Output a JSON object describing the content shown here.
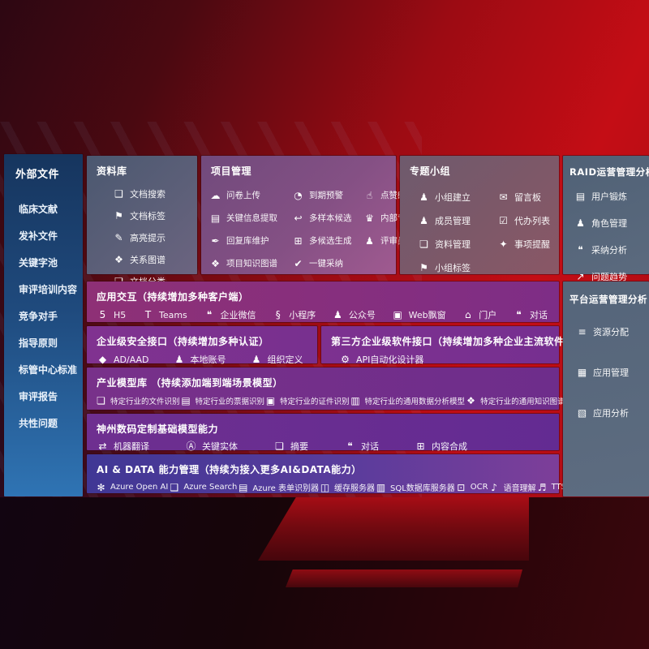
{
  "colors": {
    "background_red": "#c40d15",
    "background_maroon": "#4a0911",
    "sidebar_blue_top": "#16355e",
    "sidebar_blue_bottom": "#2f74b4",
    "panel_gray_blue": "#5c5f78",
    "panel_purple": "#845084",
    "panel_mauve": "#7d5868",
    "panel_slate": "#5b6a7e",
    "row_magenta": "#862f7e",
    "row_purple": "#78308f",
    "row_indigo": "#5a3c9c"
  },
  "icon_glyphs": {
    "doc-search": "❑",
    "doc-tag": "⚑",
    "highlighter": "✎",
    "relation-graph": "❖",
    "doc-classify": "❏",
    "cloud-upload": "☁",
    "alarm": "◔",
    "thumbs-up": "☝",
    "key-info-extract": "▤",
    "reply-library": "✒",
    "multi-sample": "↩",
    "multi-candidate": "⊞",
    "expert-rank": "♛",
    "person-portrait": "♟",
    "knowledge-graph": "❖",
    "adopt-check": "✔",
    "group-create": "♟",
    "message-board": "✉",
    "member-manage": "♟",
    "todo-list": "☑",
    "material-manage": "❏",
    "bell-remind": "✦",
    "group-tag": "⚑",
    "id-card": "▤",
    "role-people": "♟",
    "chat-analysis": "❝",
    "trend-chart": "↗",
    "html5": "5",
    "teams": "T",
    "wechat-work": "❝",
    "mini-program": "§",
    "official-account": "♟",
    "web-window": "▣",
    "portal-person": "⌂",
    "dialog-chat": "❝",
    "shield": "◆",
    "local-account": "♟",
    "org-people": "♟",
    "api-gear": "⚙",
    "file-recognize": "❏",
    "invoice-recognize": "▤",
    "cert-recognize": "▣",
    "data-analysis-model": "▥",
    "knowledge-graph-model": "❖",
    "translate": "⇄",
    "key-entity": "Ⓐ",
    "summary-doc": "❏",
    "chat-bubble": "❝",
    "content-compose": "⊞",
    "openai": "✻",
    "azure-search": "❑",
    "form-recognizer": "▤",
    "cache-server": "◫",
    "sql-database": "▥",
    "ocr-frame": "⊡",
    "voice-understand": "♪",
    "tts": "♬",
    "resource-list": "≡",
    "app-grid": "▦",
    "app-analysis": "▧"
  },
  "sidebar": {
    "title": "外部文件",
    "items": [
      {
        "label": "临床文献"
      },
      {
        "label": "发补文件"
      },
      {
        "label": "关键字池"
      },
      {
        "label": "审评培训内容"
      },
      {
        "label": "竞争对手"
      },
      {
        "label": "指导原则"
      },
      {
        "label": "标管中心标准"
      },
      {
        "label": "审评报告"
      },
      {
        "label": "共性问题"
      }
    ]
  },
  "panels": {
    "ziliaoku": {
      "title": "资料库",
      "items": [
        {
          "icon": "doc-search",
          "label": "文档搜索"
        },
        {
          "icon": "doc-tag",
          "label": "文档标签"
        },
        {
          "icon": "highlighter",
          "label": "高亮提示"
        },
        {
          "icon": "relation-graph",
          "label": "关系图谱"
        },
        {
          "icon": "doc-classify",
          "label": "文档分类"
        }
      ]
    },
    "xiangmu": {
      "title": "项目管理",
      "items": [
        {
          "icon": "cloud-upload",
          "label": "问卷上传"
        },
        {
          "icon": "alarm",
          "label": "到期预警"
        },
        {
          "icon": "thumbs-up",
          "label": "点赞感谢"
        },
        {
          "icon": "key-info-extract",
          "label": "关键信息提取"
        },
        {
          "icon": "multi-sample",
          "label": "多样本候选"
        },
        {
          "icon": "expert-rank",
          "label": "内部专家排名"
        },
        {
          "icon": "reply-library",
          "label": "回复库维护"
        },
        {
          "icon": "multi-candidate",
          "label": "多候选生成"
        },
        {
          "icon": "person-portrait",
          "label": "评审员画像"
        },
        {
          "icon": "knowledge-graph",
          "label": "项目知识图谱"
        },
        {
          "icon": "adopt-check",
          "label": "一键采纳"
        }
      ]
    },
    "zhuanti": {
      "title": "专题小组",
      "items": [
        {
          "icon": "group-create",
          "label": "小组建立"
        },
        {
          "icon": "message-board",
          "label": "留言板"
        },
        {
          "icon": "member-manage",
          "label": "成员管理"
        },
        {
          "icon": "todo-list",
          "label": "代办列表"
        },
        {
          "icon": "material-manage",
          "label": "资料管理"
        },
        {
          "icon": "bell-remind",
          "label": "事项提醒"
        },
        {
          "icon": "group-tag",
          "label": "小组标签"
        }
      ]
    },
    "raid": {
      "title": "RAID运营管理分析",
      "items": [
        {
          "icon": "id-card",
          "label": "用户锻炼"
        },
        {
          "icon": "role-people",
          "label": "角色管理"
        },
        {
          "icon": "chat-analysis",
          "label": "采纳分析"
        },
        {
          "icon": "trend-chart",
          "label": "问题趋势"
        }
      ]
    },
    "yingyong": {
      "title": "应用交互（持续增加多种客户端）",
      "items": [
        {
          "icon": "html5",
          "label": "H5"
        },
        {
          "icon": "teams",
          "label": "Teams"
        },
        {
          "icon": "wechat-work",
          "label": "企业微信"
        },
        {
          "icon": "mini-program",
          "label": "小程序"
        },
        {
          "icon": "official-account",
          "label": "公众号"
        },
        {
          "icon": "web-window",
          "label": "Web飘窗"
        },
        {
          "icon": "portal-person",
          "label": "门户"
        },
        {
          "icon": "dialog-chat",
          "label": "对话"
        }
      ]
    },
    "anquan": {
      "title": "企业级安全接口（持续增加多种认证）",
      "items": [
        {
          "icon": "shield",
          "label": "AD/AAD"
        },
        {
          "icon": "local-account",
          "label": "本地账号"
        },
        {
          "icon": "org-people",
          "label": "组织定义"
        }
      ]
    },
    "disanfang": {
      "title": "第三方企业级软件接口（持续增加多种企业主流软件接口）",
      "items": [
        {
          "icon": "api-gear",
          "label": "API自动化设计器"
        }
      ]
    },
    "chanye": {
      "title": "产业模型库 （持续添加端到端场景模型）",
      "items": [
        {
          "icon": "file-recognize",
          "label": "特定行业的文件识别"
        },
        {
          "icon": "invoice-recognize",
          "label": "特定行业的票据识别"
        },
        {
          "icon": "cert-recognize",
          "label": "特定行业的证件识别"
        },
        {
          "icon": "data-analysis-model",
          "label": "特定行业的通用数据分析模型"
        },
        {
          "icon": "knowledge-graph-model",
          "label": "特定行业的通用知识图谱模型"
        }
      ]
    },
    "shenzhou": {
      "title": "神州数码定制基础模型能力",
      "items": [
        {
          "icon": "translate",
          "label": "机器翻译"
        },
        {
          "icon": "key-entity",
          "label": "关键实体"
        },
        {
          "icon": "summary-doc",
          "label": "摘要"
        },
        {
          "icon": "chat-bubble",
          "label": "对话"
        },
        {
          "icon": "content-compose",
          "label": "内容合成"
        }
      ]
    },
    "aidata": {
      "title": "AI & DATA 能力管理（持续为接入更多AI&DATA能力）",
      "items": [
        {
          "icon": "openai",
          "label": "Azure Open AI"
        },
        {
          "icon": "azure-search",
          "label": "Azure Search"
        },
        {
          "icon": "form-recognizer",
          "label": "Azure 表单识别器"
        },
        {
          "icon": "cache-server",
          "label": "缓存服务器"
        },
        {
          "icon": "sql-database",
          "label": "SQL数据库服务器"
        },
        {
          "icon": "ocr-frame",
          "label": "OCR"
        },
        {
          "icon": "voice-understand",
          "label": "语音理解"
        },
        {
          "icon": "tts",
          "label": "TTS"
        }
      ]
    },
    "pingtai": {
      "title": "平台运营管理分析",
      "items": [
        {
          "icon": "resource-list",
          "label": "资源分配"
        },
        {
          "icon": "app-grid",
          "label": "应用管理"
        },
        {
          "icon": "app-analysis",
          "label": "应用分析"
        }
      ]
    }
  }
}
